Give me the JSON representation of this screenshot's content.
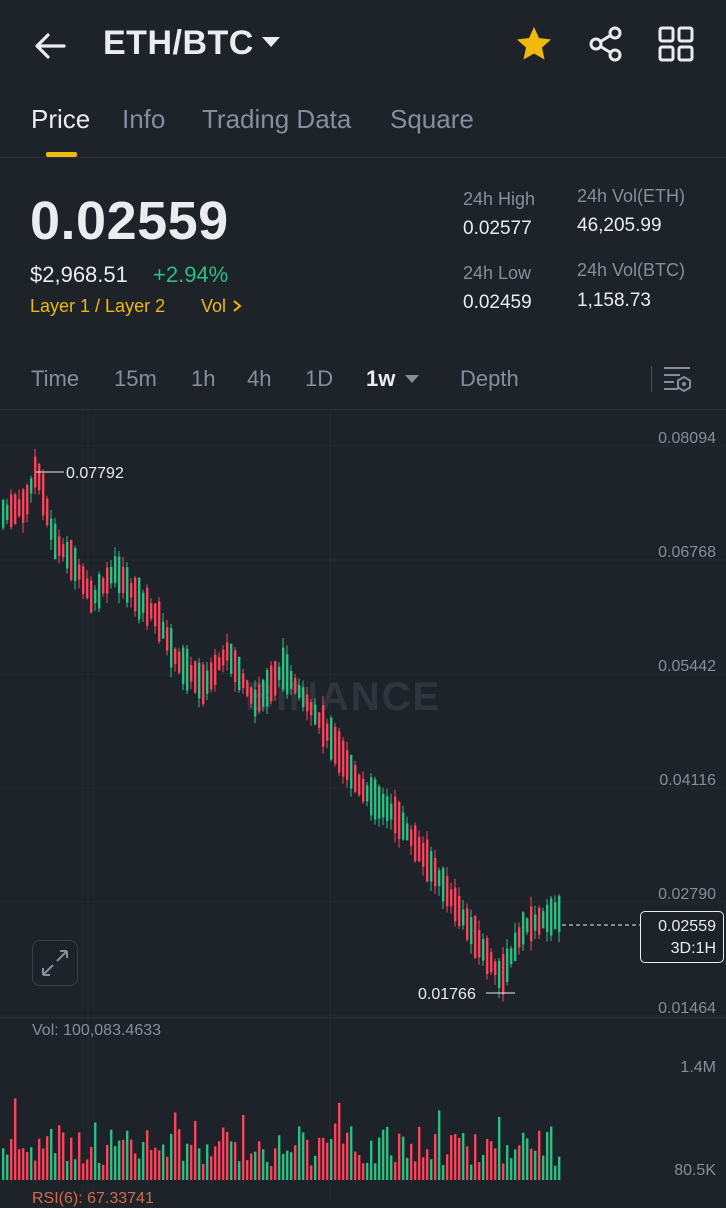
{
  "header": {
    "pair": "ETH/BTC",
    "favorite_color": "#f0b90b"
  },
  "tabs": [
    {
      "label": "Price",
      "active": true
    },
    {
      "label": "Info",
      "active": false
    },
    {
      "label": "Trading Data",
      "active": false
    },
    {
      "label": "Square",
      "active": false
    }
  ],
  "price": {
    "last": "0.02559",
    "usd": "$2,968.51",
    "change": "+2.94%",
    "change_color": "#2ebd85",
    "tag_layer": "Layer 1 / Layer 2",
    "tag_vol": "Vol"
  },
  "stats": {
    "high_label": "24h High",
    "high_value": "0.02577",
    "low_label": "24h Low",
    "low_value": "0.02459",
    "vol_eth_label": "24h Vol(ETH)",
    "vol_eth_value": "46,205.99",
    "vol_btc_label": "24h Vol(BTC)",
    "vol_btc_value": "1,158.73"
  },
  "intervals": {
    "time": "Time",
    "m15": "15m",
    "h1": "1h",
    "h4": "4h",
    "d1": "1D",
    "w1": "1w",
    "depth": "Depth",
    "active": "1w"
  },
  "chart": {
    "price_axis": [
      "0.08094",
      "0.06768",
      "0.05442",
      "0.04116",
      "0.02790",
      "0.01464"
    ],
    "high_marker": "0.07792",
    "low_marker": "0.01766",
    "current_price": "0.02559",
    "current_tf": "3D:1H",
    "watermark": "BINANCE",
    "vol_label": "Vol: 100,083.4633",
    "vol_axis_top": "1.4M",
    "vol_axis_bottom": "80.5K",
    "rsi_label": "RSI(6): 67.33741",
    "up_color": "#2ebd85",
    "down_color": "#f6465d"
  },
  "chart_data": {
    "type": "candlestick",
    "ylim": [
      0.01464,
      0.08094
    ],
    "y_ticks": [
      0.08094,
      0.06768,
      0.05442,
      0.04116,
      0.0279,
      0.01464
    ],
    "high": 0.07792,
    "low": 0.01766,
    "last": 0.02559,
    "volume_ylim": [
      80500,
      1400000
    ]
  }
}
